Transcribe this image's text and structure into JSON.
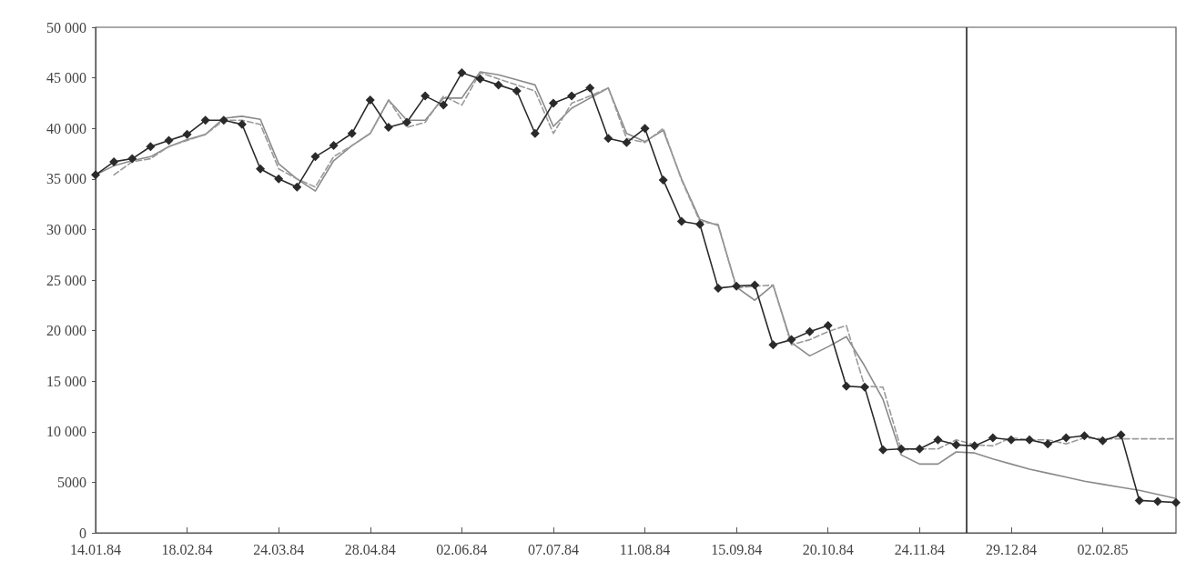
{
  "chart_data": {
    "type": "line",
    "x": [
      "1984-01-14",
      "1984-01-21",
      "1984-01-28",
      "1984-02-04",
      "1984-02-11",
      "1984-02-18",
      "1984-02-25",
      "1984-03-03",
      "1984-03-10",
      "1984-03-17",
      "1984-03-24",
      "1984-03-31",
      "1984-04-07",
      "1984-04-14",
      "1984-04-21",
      "1984-04-28",
      "1984-05-05",
      "1984-05-12",
      "1984-05-19",
      "1984-05-26",
      "1984-06-02",
      "1984-06-09",
      "1984-06-16",
      "1984-06-23",
      "1984-06-30",
      "1984-07-07",
      "1984-07-14",
      "1984-07-21",
      "1984-07-28",
      "1984-08-04",
      "1984-08-11",
      "1984-08-18",
      "1984-08-25",
      "1984-09-01",
      "1984-09-08",
      "1984-09-15",
      "1984-09-22",
      "1984-09-29",
      "1984-10-06",
      "1984-10-13",
      "1984-10-20",
      "1984-10-27",
      "1984-11-03",
      "1984-11-10",
      "1984-11-17",
      "1984-11-24",
      "1984-12-01",
      "1984-12-08",
      "1984-12-15",
      "1984-12-22",
      "1984-12-29",
      "1985-01-05",
      "1985-01-12",
      "1985-01-19",
      "1985-01-26",
      "1985-02-02",
      "1985-02-09",
      "1985-02-16",
      "1985-02-23",
      "1985-03-02"
    ],
    "series": [
      {
        "color": "#8a8a8a",
        "line_style": "solid",
        "marker": "none",
        "values": [
          35400,
          36300,
          36800,
          37200,
          38200,
          38900,
          39400,
          41000,
          41200,
          40900,
          36500,
          35000,
          33800,
          36800,
          38300,
          39500,
          42800,
          40800,
          40800,
          43000,
          43000,
          45600,
          45300,
          44800,
          44300,
          40200,
          42000,
          43000,
          44000,
          39500,
          38700,
          39800,
          35000,
          31000,
          30400,
          24300,
          23000,
          24500,
          18800,
          17500,
          18400,
          19400,
          16500,
          13200,
          7700,
          6800,
          6800,
          8000,
          7900,
          7300,
          6800,
          6300,
          5900,
          5500,
          5100,
          4800,
          4500,
          4200,
          3800,
          3400
        ]
      },
      {
        "color": "#9a9a9a",
        "line_style": "dashed",
        "marker": "none",
        "values": [
          null,
          35400,
          36700,
          37000,
          38200,
          38800,
          39400,
          40800,
          40800,
          40400,
          36000,
          35000,
          34200,
          37200,
          38300,
          39500,
          42800,
          40100,
          40600,
          43200,
          42300,
          45500,
          44900,
          44300,
          43700,
          39500,
          42500,
          43200,
          44000,
          39000,
          38600,
          40000,
          34900,
          30800,
          30500,
          24200,
          24400,
          24500,
          18600,
          19100,
          19900,
          20500,
          14500,
          14400,
          8200,
          8300,
          8300,
          9200,
          8700,
          8600,
          9400,
          9200,
          9200,
          8800,
          9400,
          9300,
          9300,
          9300,
          9300,
          9300
        ]
      },
      {
        "color": "#2a2a2a",
        "line_style": "solid",
        "marker": "diamond",
        "values": [
          35400,
          36700,
          37000,
          38200,
          38800,
          39400,
          40800,
          40800,
          40400,
          36000,
          35000,
          34200,
          37200,
          38300,
          39500,
          42800,
          40100,
          40600,
          43200,
          42300,
          45500,
          44900,
          44300,
          43700,
          39500,
          42500,
          43200,
          44000,
          39000,
          38600,
          40000,
          34900,
          30800,
          30500,
          24200,
          24400,
          24500,
          18600,
          19100,
          19900,
          20500,
          14500,
          14400,
          8200,
          8300,
          8300,
          9200,
          8700,
          8600,
          9400,
          9200,
          9200,
          8800,
          9400,
          9600,
          9100,
          9700,
          3200,
          3100,
          3000
        ]
      }
    ],
    "xlim": [
      "1984-01-14",
      "1985-03-02"
    ],
    "xticks": [
      {
        "value": "1984-01-14",
        "label": "14.01.84"
      },
      {
        "value": "1984-02-18",
        "label": "18.02.84"
      },
      {
        "value": "1984-03-24",
        "label": "24.03.84"
      },
      {
        "value": "1984-04-28",
        "label": "28.04.84"
      },
      {
        "value": "1984-06-02",
        "label": "02.06.84"
      },
      {
        "value": "1984-07-07",
        "label": "07.07.84"
      },
      {
        "value": "1984-08-11",
        "label": "11.08.84"
      },
      {
        "value": "1984-09-15",
        "label": "15.09.84"
      },
      {
        "value": "1984-10-20",
        "label": "20.10.84"
      },
      {
        "value": "1984-11-24",
        "label": "24.11.84"
      },
      {
        "value": "1984-12-29",
        "label": "29.12.84"
      },
      {
        "value": "1985-02-02",
        "label": "02.02.85"
      }
    ],
    "ylim": [
      0,
      50000
    ],
    "yticks": [
      0,
      5000,
      {
        "value": 10000,
        "label": "10 000"
      },
      {
        "value": 15000,
        "label": "15 000"
      },
      {
        "value": 20000,
        "label": "20 000"
      },
      {
        "value": 25000,
        "label": "25 000"
      },
      {
        "value": 30000,
        "label": "30 000"
      },
      {
        "value": 35000,
        "label": "35 000"
      },
      {
        "value": 40000,
        "label": "40 000"
      },
      {
        "value": 45000,
        "label": "45 000"
      },
      {
        "value": 50000,
        "label": "50 000"
      }
    ],
    "ref_lines": [
      {
        "axis": "x",
        "value": "1984-12-12",
        "color": "#222222",
        "line_style": "solid"
      }
    ],
    "grid": false
  }
}
